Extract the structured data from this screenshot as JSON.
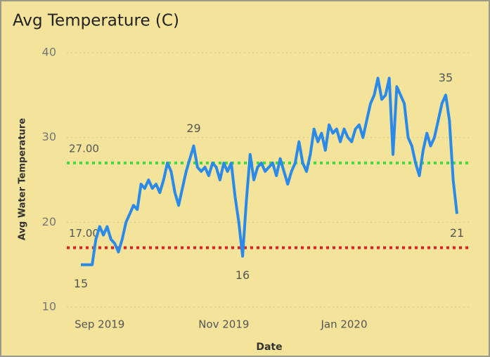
{
  "chart_data": {
    "type": "line",
    "title": "Avg Temperature (C)",
    "x_label": "Date",
    "y_label": "Avg Water Temperature",
    "categories": [
      null,
      null,
      null,
      null,
      null,
      "Sep 2019",
      null,
      null,
      null,
      null,
      null,
      null,
      null,
      null,
      null,
      null,
      null,
      null,
      null,
      null,
      null,
      null,
      null,
      null,
      null,
      null,
      null,
      null,
      null,
      null,
      null,
      null,
      null,
      null,
      null,
      null,
      null,
      null,
      "Nov 2019",
      null,
      null,
      null,
      null,
      null,
      null,
      null,
      null,
      null,
      null,
      null,
      null,
      null,
      null,
      null,
      null,
      null,
      null,
      null,
      null,
      null,
      null,
      null,
      null,
      null,
      null,
      null,
      null,
      null,
      null,
      null,
      "Jan 2020",
      null,
      null,
      null,
      null,
      null,
      null,
      null,
      null,
      null,
      null,
      null,
      null,
      null,
      null,
      null,
      null,
      null,
      null,
      null,
      null,
      null,
      null,
      null,
      null,
      null,
      null,
      null,
      null,
      null,
      null
    ],
    "series": [
      {
        "name": "Avg Water Temperature",
        "color": "#2b8ae8",
        "values": [
          15,
          15,
          15,
          15,
          18,
          19.5,
          18.5,
          19.5,
          18,
          17.5,
          16.5,
          18,
          20,
          21,
          22,
          21.5,
          24.5,
          24,
          25,
          24,
          24.5,
          23.5,
          25,
          27,
          26,
          23.5,
          22,
          24,
          26,
          27.5,
          29,
          26.5,
          26,
          26.5,
          25.5,
          27,
          26.5,
          25,
          27,
          26,
          27,
          23,
          20,
          16,
          22.5,
          28,
          25,
          26.5,
          27,
          26,
          26.5,
          27,
          25.5,
          27.5,
          26,
          24.5,
          26,
          27,
          29.5,
          27,
          26,
          28,
          31,
          29.5,
          30.5,
          28.5,
          31.5,
          30.5,
          31,
          29.5,
          31,
          30,
          29.5,
          31,
          31.5,
          30,
          32,
          34,
          35,
          37,
          34.5,
          35,
          37,
          28,
          36,
          35,
          34,
          30,
          29,
          27,
          25.5,
          28.5,
          30.5,
          29,
          30,
          32,
          34,
          35,
          32,
          25,
          21
        ],
        "value_labels": [
          "15",
          null,
          null,
          null,
          null,
          null,
          null,
          null,
          null,
          null,
          null,
          null,
          null,
          null,
          null,
          null,
          null,
          null,
          null,
          null,
          null,
          null,
          null,
          null,
          null,
          null,
          null,
          null,
          null,
          null,
          "29",
          null,
          null,
          null,
          null,
          null,
          null,
          null,
          null,
          null,
          null,
          null,
          null,
          "16",
          null,
          null,
          null,
          null,
          null,
          null,
          null,
          null,
          null,
          null,
          null,
          null,
          null,
          null,
          null,
          null,
          null,
          null,
          null,
          null,
          null,
          null,
          null,
          null,
          null,
          null,
          null,
          null,
          null,
          null,
          null,
          null,
          null,
          null,
          null,
          null,
          null,
          null,
          null,
          null,
          null,
          null,
          null,
          null,
          null,
          null,
          null,
          null,
          null,
          null,
          null,
          null,
          null,
          "35",
          null,
          null,
          "21"
        ]
      }
    ],
    "reference_lines": [
      {
        "value": 27,
        "label": "27.00",
        "color": "#3ddc3d"
      },
      {
        "value": 17,
        "label": "17.00",
        "color": "#e02020"
      }
    ],
    "ylim": [
      10,
      40
    ],
    "yticks": [
      10,
      20,
      30,
      40
    ],
    "grid": true
  }
}
